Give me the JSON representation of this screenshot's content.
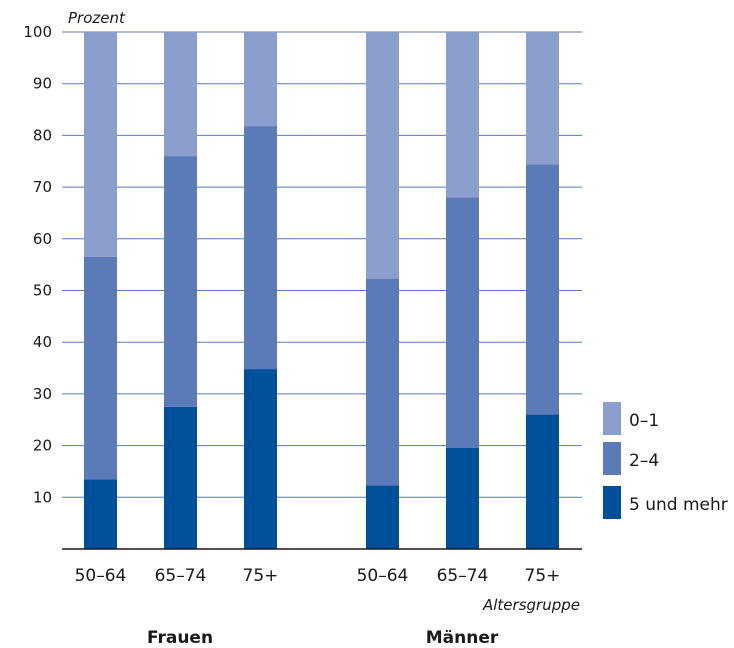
{
  "chart_data": {
    "type": "bar",
    "stacked": true,
    "ylabel": "Prozent",
    "xlabel": "Altersgruppe",
    "ylim": [
      0,
      100
    ],
    "yticks": [
      10,
      20,
      30,
      40,
      50,
      60,
      70,
      80,
      90,
      100
    ],
    "grid": true,
    "legend_position": "bottom-right",
    "groups": [
      {
        "name": "Frauen",
        "categories": [
          "50–64",
          "65–74",
          "75+"
        ]
      },
      {
        "name": "Männer",
        "categories": [
          "50–64",
          "65–74",
          "75+"
        ]
      }
    ],
    "series": [
      {
        "name": "5 und mehr",
        "color": "#004f9a",
        "values": [
          13.5,
          27.5,
          34.8,
          12.3,
          19.6,
          26.0
        ]
      },
      {
        "name": "2–4",
        "color": "#5b7ab8",
        "values": [
          43.0,
          48.5,
          47.0,
          40.0,
          48.4,
          48.4
        ]
      },
      {
        "name": "0–1",
        "color": "#8c9fcc",
        "values": [
          43.5,
          24.0,
          18.2,
          47.7,
          32.0,
          25.6
        ]
      }
    ]
  }
}
